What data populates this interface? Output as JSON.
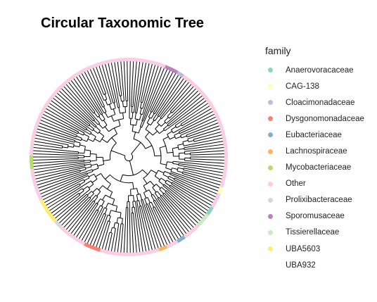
{
  "chart_data": {
    "type": "circular-tree",
    "title": "Circular Taxonomic Tree",
    "legend": {
      "title": "family",
      "placement": "right",
      "entries": [
        {
          "label": "Anaerovoracaceae",
          "color": "#8DD3C7"
        },
        {
          "label": "CAG-138",
          "color": "#FFFFB3"
        },
        {
          "label": "Cloacimonadaceae",
          "color": "#BEBADA"
        },
        {
          "label": "Dysgonomonadaceae",
          "color": "#FB8072"
        },
        {
          "label": "Eubacteriaceae",
          "color": "#80B1D3"
        },
        {
          "label": "Lachnospiraceae",
          "color": "#FDB462"
        },
        {
          "label": "Mycobacteriaceae",
          "color": "#B3DE69"
        },
        {
          "label": "Other",
          "color": "#FCCDE5"
        },
        {
          "label": "Prolixibacteraceae",
          "color": "#D9D9D9"
        },
        {
          "label": "Sporomusaceae",
          "color": "#BC80BD"
        },
        {
          "label": "Tissierellaceae",
          "color": "#CCEBC5"
        },
        {
          "label": "UBA5603",
          "color": "#FFED6F"
        },
        {
          "label": "UBA932",
          "color": "#FFFFFF"
        }
      ]
    },
    "ring_segments": [
      {
        "family": "Other",
        "start_deg": 0,
        "end_deg": 22
      },
      {
        "family": "Sporomusaceae",
        "start_deg": 22,
        "end_deg": 30
      },
      {
        "family": "Cloacimonadaceae",
        "start_deg": 30,
        "end_deg": 34
      },
      {
        "family": "Other",
        "start_deg": 34,
        "end_deg": 108
      },
      {
        "family": "CAG-138",
        "start_deg": 108,
        "end_deg": 112
      },
      {
        "family": "Other",
        "start_deg": 112,
        "end_deg": 121
      },
      {
        "family": "Anaerovoracaceae",
        "start_deg": 121,
        "end_deg": 126
      },
      {
        "family": "Tissierellaceae",
        "start_deg": 126,
        "end_deg": 135
      },
      {
        "family": "Other",
        "start_deg": 135,
        "end_deg": 145
      },
      {
        "family": "Eubacteriaceae",
        "start_deg": 145,
        "end_deg": 150
      },
      {
        "family": "Other",
        "start_deg": 150,
        "end_deg": 157
      },
      {
        "family": "Lachnospiraceae",
        "start_deg": 157,
        "end_deg": 162
      },
      {
        "family": "Other",
        "start_deg": 162,
        "end_deg": 197
      },
      {
        "family": "Dysgonomonadaceae",
        "start_deg": 197,
        "end_deg": 207
      },
      {
        "family": "Other",
        "start_deg": 207,
        "end_deg": 224
      },
      {
        "family": "Prolixibacteraceae",
        "start_deg": 224,
        "end_deg": 229
      },
      {
        "family": "UBA5603",
        "start_deg": 229,
        "end_deg": 244
      },
      {
        "family": "Other",
        "start_deg": 244,
        "end_deg": 263
      },
      {
        "family": "Mycobacteriaceae",
        "start_deg": 263,
        "end_deg": 271
      },
      {
        "family": "Other",
        "start_deg": 271,
        "end_deg": 360
      }
    ],
    "n_tips": 190,
    "tree_color": "#000000"
  }
}
